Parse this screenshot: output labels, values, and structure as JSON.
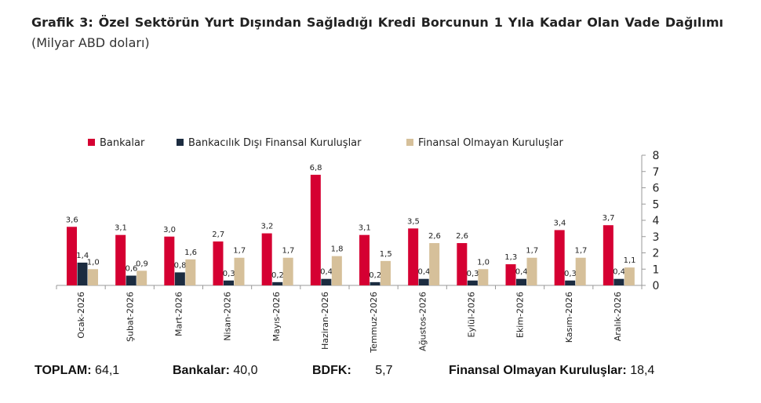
{
  "title": {
    "bold": "Grafik 3: Özel Sektörün Yurt Dışından Sağladığı Kredi Borcunun 1 Yıla Kadar Olan Vade Dağılımı",
    "normal": "(Milyar ABD doları)"
  },
  "chart_data": {
    "type": "bar",
    "categories": [
      "Ocak-2026",
      "Şubat-2026",
      "Mart-2026",
      "Nisan-2026",
      "Mayıs-2026",
      "Haziran-2026",
      "Temmuz-2026",
      "Ağustos-2026",
      "Eylül-2026",
      "Ekim-2026",
      "Kasım-2026",
      "Aralık-2026"
    ],
    "series": [
      {
        "name": "Bankalar",
        "color": "#d50032",
        "values": [
          3.6,
          3.1,
          3.0,
          2.7,
          3.2,
          6.8,
          3.1,
          3.5,
          2.6,
          1.3,
          3.4,
          3.7
        ]
      },
      {
        "name": "Bankacılık Dışı Finansal Kuruluşlar",
        "color": "#1c2c40",
        "values": [
          1.4,
          0.6,
          0.8,
          0.3,
          0.2,
          0.4,
          0.2,
          0.4,
          0.3,
          0.4,
          0.3,
          0.4
        ]
      },
      {
        "name": "Finansal Olmayan Kuruluşlar",
        "color": "#d6c09a",
        "values": [
          1.0,
          0.9,
          1.6,
          1.7,
          1.7,
          1.8,
          1.5,
          2.6,
          1.0,
          1.7,
          1.7,
          1.1
        ]
      }
    ],
    "ylim": [
      0,
      8
    ],
    "yticks": [
      "0",
      "1",
      "2",
      "3",
      "4",
      "5",
      "6",
      "7",
      "8"
    ],
    "y_axis_side": "right",
    "legend": "top",
    "grid": false,
    "decimal_separator": ","
  },
  "totals": [
    {
      "label": "TOPLAM:",
      "value": "64,1"
    },
    {
      "label": "Bankalar:",
      "value": "40,0"
    },
    {
      "label": "BDFK:",
      "value": "5,7"
    },
    {
      "label": "Finansal Olmayan Kuruluşlar:",
      "value": "18,4"
    }
  ]
}
